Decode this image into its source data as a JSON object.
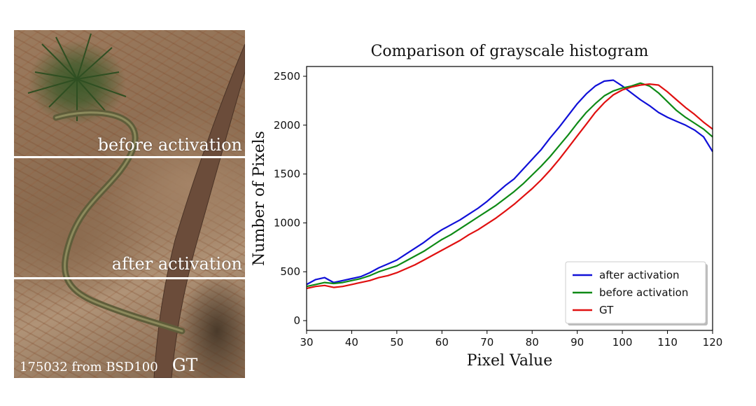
{
  "photo": {
    "label_before": "before activation",
    "label_after": "after activation",
    "caption": "175032 from BSD100",
    "caption_tag": "GT"
  },
  "chart_data": {
    "type": "line",
    "title": "Comparison of  grayscale histogram",
    "xlabel": "Pixel Value",
    "ylabel": "Number of  Pixels",
    "xlim": [
      30,
      120
    ],
    "ylim": [
      -100,
      2600
    ],
    "xticks": [
      30,
      40,
      50,
      60,
      70,
      80,
      90,
      100,
      110,
      120
    ],
    "yticks": [
      0,
      500,
      1000,
      1500,
      2000,
      2500
    ],
    "legend_position": "lower-right",
    "x": [
      30,
      32,
      34,
      36,
      38,
      40,
      42,
      44,
      46,
      48,
      50,
      52,
      54,
      56,
      58,
      60,
      62,
      64,
      66,
      68,
      70,
      72,
      74,
      76,
      78,
      80,
      82,
      84,
      86,
      88,
      90,
      92,
      94,
      96,
      98,
      100,
      102,
      104,
      106,
      108,
      110,
      112,
      114,
      116,
      118,
      120
    ],
    "series": [
      {
        "name": "after activation",
        "color": "#1010d8",
        "values": [
          370,
          420,
          440,
          390,
          410,
          430,
          450,
          490,
          540,
          580,
          620,
          680,
          740,
          800,
          870,
          930,
          980,
          1030,
          1090,
          1150,
          1220,
          1300,
          1380,
          1450,
          1550,
          1650,
          1750,
          1870,
          1980,
          2100,
          2220,
          2320,
          2400,
          2450,
          2460,
          2400,
          2330,
          2260,
          2200,
          2130,
          2080,
          2040,
          2000,
          1950,
          1880,
          1730
        ]
      },
      {
        "name": "before activation",
        "color": "#0e8a16",
        "values": [
          350,
          370,
          390,
          380,
          390,
          410,
          430,
          460,
          500,
          530,
          560,
          610,
          660,
          710,
          770,
          830,
          880,
          940,
          1000,
          1060,
          1120,
          1180,
          1250,
          1320,
          1400,
          1490,
          1580,
          1680,
          1790,
          1900,
          2020,
          2130,
          2220,
          2300,
          2350,
          2380,
          2400,
          2430,
          2400,
          2330,
          2240,
          2150,
          2080,
          2020,
          1960,
          1880
        ]
      },
      {
        "name": "GT",
        "color": "#e01010",
        "values": [
          330,
          350,
          360,
          340,
          350,
          370,
          390,
          410,
          440,
          460,
          490,
          530,
          570,
          620,
          670,
          720,
          770,
          820,
          880,
          930,
          990,
          1050,
          1120,
          1190,
          1270,
          1350,
          1440,
          1540,
          1650,
          1770,
          1890,
          2010,
          2130,
          2230,
          2310,
          2360,
          2390,
          2410,
          2420,
          2410,
          2340,
          2260,
          2180,
          2110,
          2030,
          1960
        ]
      }
    ]
  }
}
